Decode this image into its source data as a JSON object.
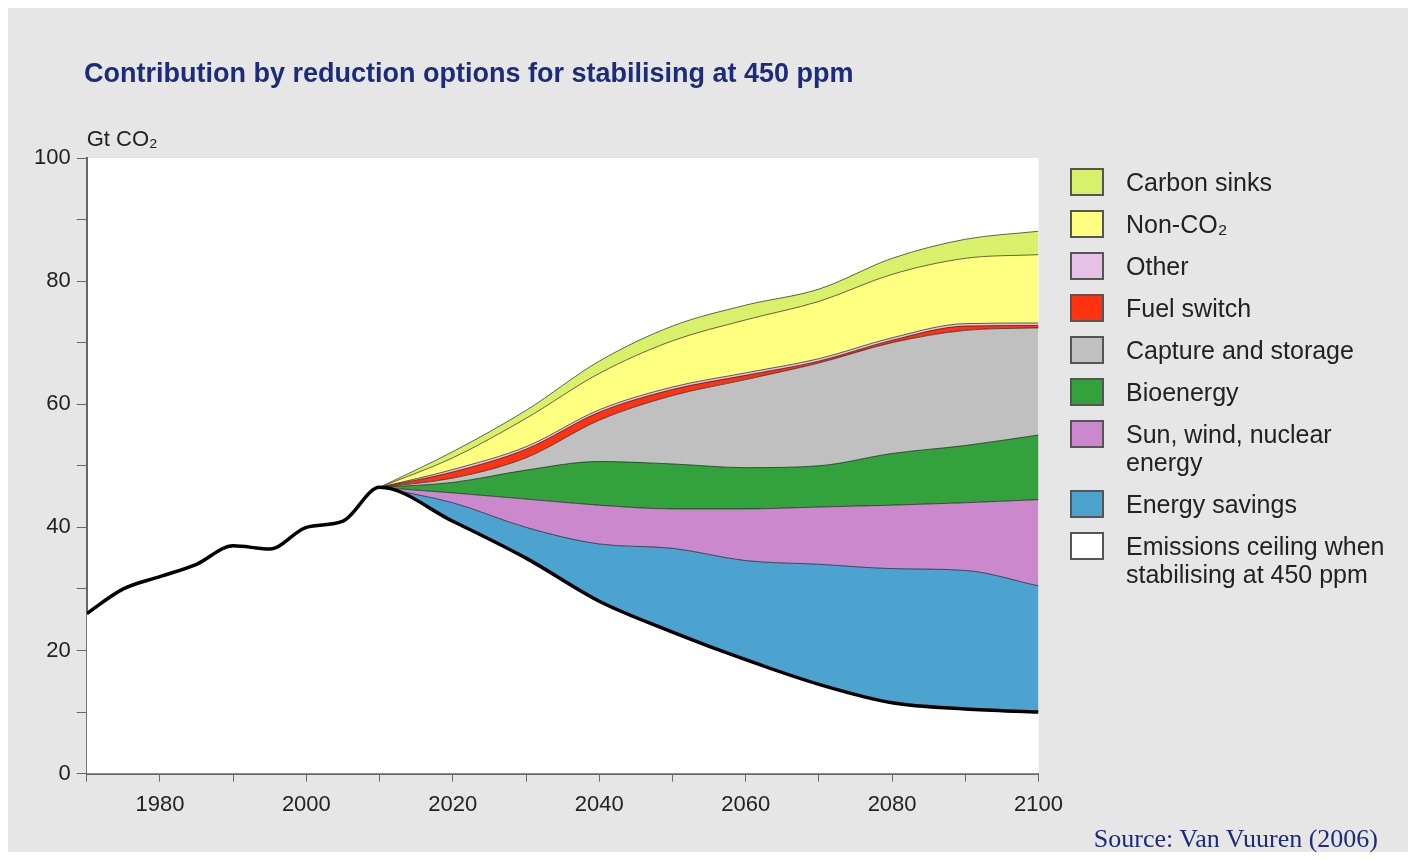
{
  "chart_data": {
    "type": "area",
    "title": "Contribution by reduction options for stabilising at 450 ppm",
    "ylabel": "Gt CO₂",
    "stacked": true,
    "legend": "right",
    "grid": false,
    "marker": "none",
    "x": [
      1970,
      1975,
      1980,
      1985,
      1990,
      1995,
      2000,
      2005,
      2010,
      2020,
      2030,
      2040,
      2050,
      2060,
      2070,
      2080,
      2090,
      2100
    ],
    "xlim": [
      1970,
      2100
    ],
    "xticks": [
      {
        "value": 1970,
        "label": null
      },
      1980,
      {
        "value": 1990,
        "label": null
      },
      2000,
      {
        "value": 2010,
        "label": null
      },
      2020,
      {
        "value": 2030,
        "label": null
      },
      2040,
      {
        "value": 2050,
        "label": null
      },
      2060,
      {
        "value": 2070,
        "label": null
      },
      2080,
      {
        "value": 2090,
        "label": null
      },
      2100
    ],
    "ylim": [
      0,
      100
    ],
    "yticks": [
      0,
      {
        "value": 10,
        "label": null
      },
      20,
      {
        "value": 30,
        "label": null
      },
      40,
      {
        "value": 50,
        "label": null
      },
      60,
      {
        "value": 70,
        "label": null
      },
      80,
      {
        "value": 90,
        "label": null
      },
      100
    ],
    "series": [
      {
        "name": "Emissions ceiling when stabilising at 450 ppm",
        "color": "#ffffff",
        "values": [
          26,
          30,
          32,
          34,
          37,
          36.5,
          40,
          41,
          46.5,
          41,
          35,
          28,
          23,
          18.5,
          14.5,
          11.5,
          10.5,
          10
        ]
      },
      {
        "name": "Energy savings",
        "color": "#4da3d0",
        "values": [
          null,
          null,
          null,
          null,
          null,
          null,
          null,
          null,
          0,
          3,
          5,
          9.3,
          13.6,
          16.1,
          19.5,
          21.8,
          22.5,
          20.5
        ]
      },
      {
        "name": "Sun, wind, nuclear energy",
        "color": "#cc88cc",
        "values": [
          null,
          null,
          null,
          null,
          null,
          null,
          null,
          null,
          0,
          1.6,
          4.6,
          6.3,
          6.4,
          8.4,
          9.3,
          10.3,
          11,
          14
        ]
      },
      {
        "name": "Bioenergy",
        "color": "#33a23d",
        "values": [
          null,
          null,
          null,
          null,
          null,
          null,
          null,
          null,
          0,
          1.7,
          4.7,
          7.1,
          7.3,
          6.7,
          6.7,
          8.4,
          9.3,
          10.5
        ]
      },
      {
        "name": "Capture and storage",
        "color": "#c0c0c0",
        "values": [
          null,
          null,
          null,
          null,
          null,
          null,
          null,
          null,
          0,
          0.7,
          2,
          6.7,
          11.1,
          14.3,
          16.7,
          18,
          18.7,
          17.4
        ]
      },
      {
        "name": "Fuel switch",
        "color": "#ff3311",
        "values": [
          null,
          null,
          null,
          null,
          null,
          null,
          null,
          null,
          0,
          1,
          1.4,
          1.3,
          1,
          0.7,
          0.3,
          0.4,
          0.7,
          0.4
        ]
      },
      {
        "name": "Other",
        "color": "#e6c0e6",
        "values": [
          null,
          null,
          null,
          null,
          null,
          null,
          null,
          null,
          0,
          0.4,
          0.4,
          0.4,
          0.4,
          0.4,
          0.4,
          0.4,
          0.4,
          0.4
        ]
      },
      {
        "name": "Non-CO₂",
        "color": "#ffff80",
        "values": [
          null,
          null,
          null,
          null,
          null,
          null,
          null,
          null,
          0,
          1.9,
          4.6,
          5.9,
          7.5,
          8.6,
          9.3,
          10.3,
          10.6,
          11.1
        ]
      },
      {
        "name": "Carbon sinks",
        "color": "#d9f06a",
        "values": [
          null,
          null,
          null,
          null,
          null,
          null,
          null,
          null,
          0,
          1,
          1.3,
          2,
          2.4,
          2.4,
          2,
          2.6,
          3.1,
          3.8
        ]
      }
    ],
    "annotations": [
      "Source: Van Vuuren (2006)"
    ]
  }
}
